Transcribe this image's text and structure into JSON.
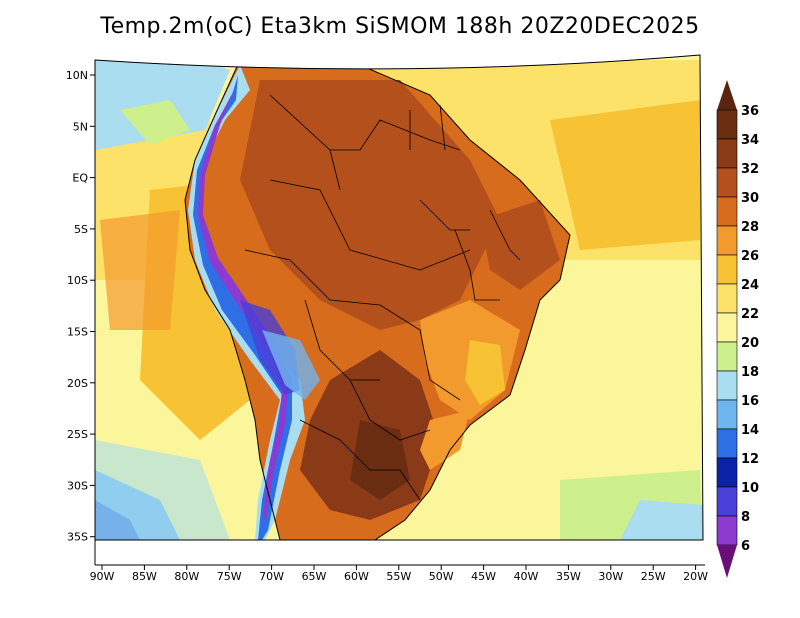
{
  "title": "Temp.2m(oC) Eta3km SiSMOM 188h 20Z20DEC2025",
  "variable": "2m temperature",
  "units": "oC",
  "latitude_labels": [
    "10N",
    "5N",
    "EQ",
    "5S",
    "10S",
    "15S",
    "20S",
    "25S",
    "30S",
    "35S"
  ],
  "longitude_labels": [
    "90W",
    "85W",
    "80W",
    "75W",
    "70W",
    "65W",
    "60W",
    "55W",
    "50W",
    "45W",
    "40W",
    "35W",
    "30W",
    "25W",
    "20W"
  ],
  "colorbar": {
    "labels": [
      "36",
      "34",
      "32",
      "30",
      "28",
      "26",
      "24",
      "22",
      "20",
      "18",
      "16",
      "14",
      "12",
      "10",
      "8",
      "6"
    ],
    "colors": [
      "#6b2d12",
      "#8b3a17",
      "#b4501c",
      "#d86c1d",
      "#f39a2e",
      "#f7c233",
      "#fde26a",
      "#fbf59c",
      "#cdf08c",
      "#a9ddef",
      "#6fb5ef",
      "#2e6fe6",
      "#0a23a8",
      "#4a3fd8",
      "#8c3ad0",
      "#7a1b86"
    ],
    "top_arrow_color": "#5a2510",
    "bottom_arrow_color": "#6a0f78"
  }
}
